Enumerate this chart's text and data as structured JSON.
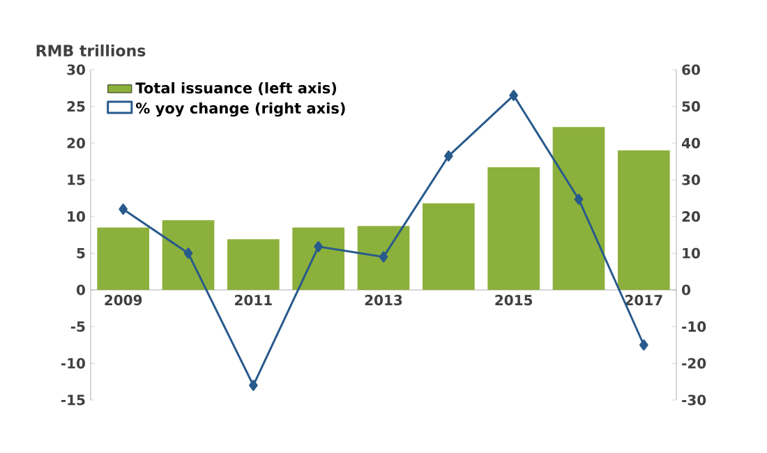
{
  "chart_data": {
    "type": "bar",
    "ylabel": "RMB trillions",
    "categories": [
      "2009",
      null,
      "2011",
      null,
      "2013",
      null,
      "2015",
      null,
      "2017"
    ],
    "series": [
      {
        "name": "Total issuance (left axis)",
        "color": "#8cb03c",
        "values": [
          8.5,
          9.5,
          6.9,
          8.5,
          8.7,
          11.8,
          16.7,
          22.2,
          19.0
        ]
      },
      {
        "name": "% yoy change (right axis)",
        "color": "#285a8c",
        "type": "line",
        "axis": "y2",
        "marker": "diamond",
        "values": [
          22,
          10,
          -26,
          11.8,
          9,
          36.5,
          53,
          24.7,
          -15
        ]
      }
    ],
    "ylim": [
      -15,
      30
    ],
    "yticks": [
      -15,
      -10,
      -5,
      0,
      5,
      10,
      15,
      20,
      25,
      30
    ],
    "y2lim": [
      -30,
      60
    ],
    "y2ticks": [
      -30,
      -20,
      -10,
      0,
      10,
      20,
      30,
      40,
      50,
      60
    ],
    "legend": "top left"
  }
}
